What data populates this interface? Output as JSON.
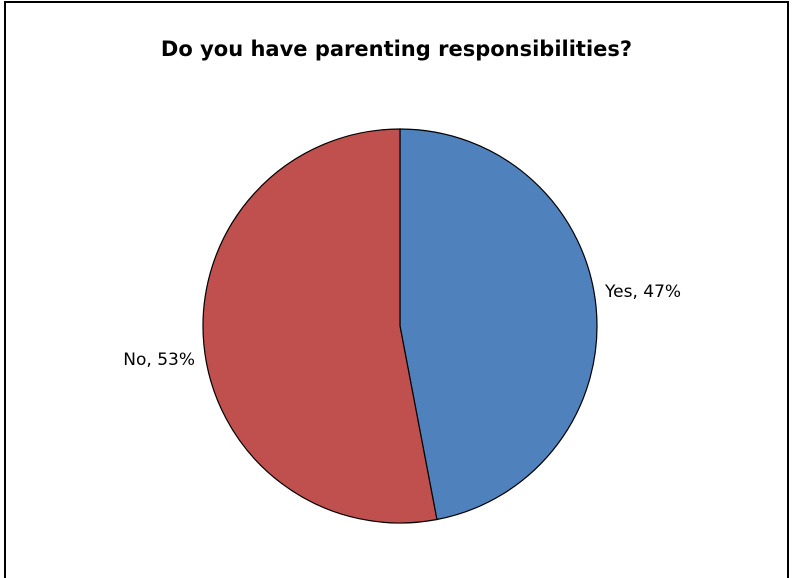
{
  "chart_data": {
    "type": "pie",
    "title": "Do you have parenting responsibilities?",
    "slices": [
      {
        "label": "Yes",
        "value": 47,
        "color": "#4f81bd",
        "display": "Yes, 47%"
      },
      {
        "label": "No",
        "value": 53,
        "color": "#c0504d",
        "display": "No, 53%"
      }
    ],
    "start_angle": "top (12 o'clock)",
    "direction": "clockwise",
    "legend": "none",
    "slice_border_color": "#000000"
  }
}
